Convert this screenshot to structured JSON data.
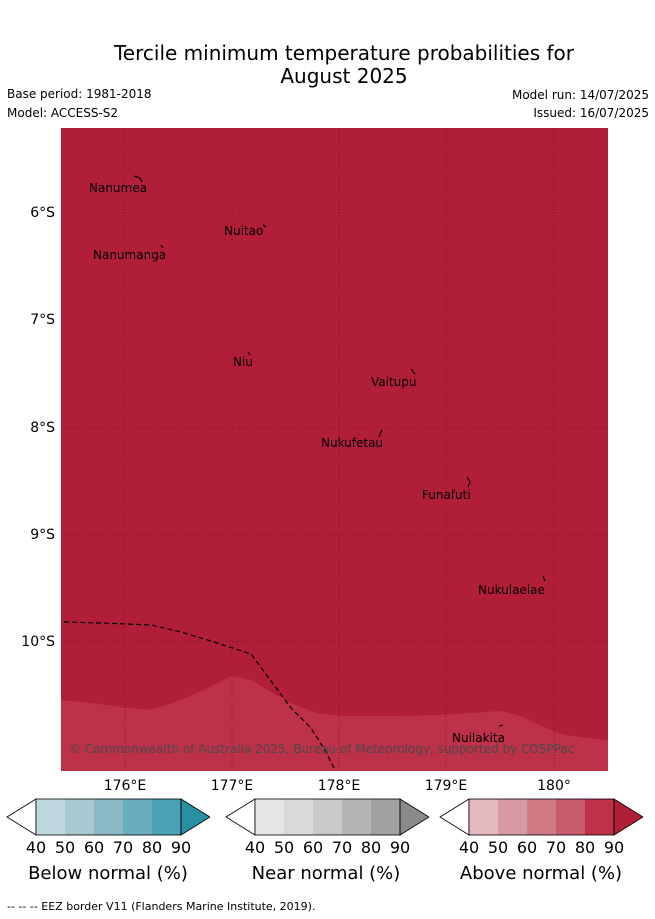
{
  "title_line1": "Tercile minimum temperature probabilities for",
  "title_line2": "August 2025",
  "base_period": "Base period: 1981-2018",
  "model": "Model: ACCESS-S2",
  "model_run": "Model run: 14/07/2025",
  "issued": "Issued: 16/07/2025",
  "credit": "© Commonwealth of Australia 2025, Bureau of Meteorology, supported by COSPPac",
  "eez_note": "--  --  -- EEZ border V11 (Flanders Marine Institute, 2019).",
  "colors": {
    "above_dominant": "#b11e38",
    "above_80": "#bd3149",
    "below_ramp": [
      "#ffffff",
      "#bfd8de",
      "#a8c9cf",
      "#8ab9c5",
      "#6aaebe",
      "#48a1b4",
      "#2b8fa3"
    ],
    "near_ramp": [
      "#ffffff",
      "#e6e6e6",
      "#d9d9d9",
      "#c9c9c9",
      "#b5b5b5",
      "#a1a1a1",
      "#8a8a8a"
    ],
    "above_ramp": [
      "#ffffff",
      "#e3b9bf",
      "#d89aa2",
      "#d07b86",
      "#c65c6c",
      "#bd3149",
      "#b11e38"
    ]
  },
  "y_ticks": [
    "6°S",
    "7°S",
    "8°S",
    "9°S",
    "10°S"
  ],
  "x_ticks": [
    "176°E",
    "177°E",
    "178°E",
    "179°E",
    "180°"
  ],
  "places": [
    "Nanumea",
    "Nuitao",
    "Nanumanga",
    "Niu",
    "Vaitupu",
    "Nukufetau",
    "Funafuti",
    "Nukulaelae",
    "Nuilakita"
  ],
  "colorbars": [
    {
      "label": "Below normal (%)",
      "ticks": [
        "40",
        "50",
        "60",
        "70",
        "80",
        "90"
      ]
    },
    {
      "label": "Near normal (%)",
      "ticks": [
        "40",
        "50",
        "60",
        "70",
        "80",
        "90"
      ]
    },
    {
      "label": "Above normal (%)",
      "ticks": [
        "40",
        "50",
        "60",
        "70",
        "80",
        "90"
      ]
    }
  ]
}
